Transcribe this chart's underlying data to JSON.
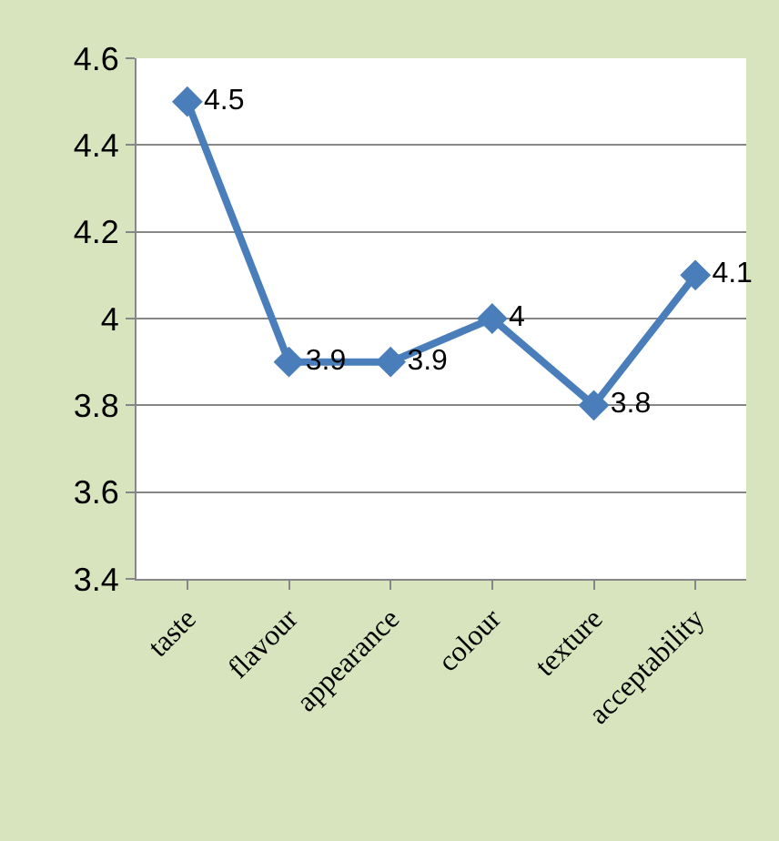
{
  "chart_data": {
    "type": "line",
    "categories": [
      "taste",
      "flavour",
      "appearance",
      "colour",
      "texture",
      "acceptability"
    ],
    "series": [
      {
        "color": "#4a7ebb",
        "values": [
          4.5,
          3.9,
          3.9,
          4,
          3.8,
          4.1
        ]
      }
    ],
    "ylim": [
      3.4,
      4.6
    ],
    "yticks": [
      3.4,
      3.6,
      3.8,
      4,
      4.2,
      4.4,
      4.6
    ],
    "grid": "y",
    "marker": "diamond",
    "line_style": "solid",
    "data_labels": true
  }
}
